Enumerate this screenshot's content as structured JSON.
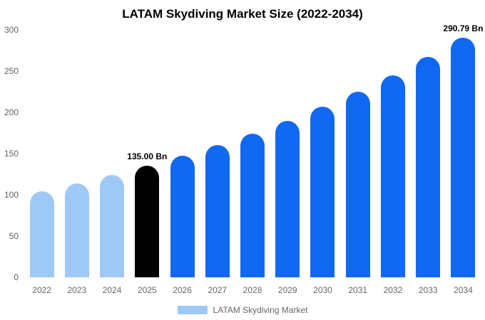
{
  "chart_data": {
    "type": "bar",
    "title": "LATAM Skydiving Market Size (2022-2034)",
    "categories": [
      "2022",
      "2023",
      "2024",
      "2025",
      "2026",
      "2027",
      "2028",
      "2029",
      "2030",
      "2031",
      "2032",
      "2033",
      "2034"
    ],
    "values": [
      104.54,
      113.84,
      123.97,
      135.0,
      147.01,
      160.1,
      174.35,
      189.87,
      206.77,
      225.17,
      245.21,
      267.03,
      290.79
    ],
    "bar_colors": [
      "#9ec9f7",
      "#9ec9f7",
      "#9ec9f7",
      "#000000",
      "#1168f2",
      "#1168f2",
      "#1168f2",
      "#1168f2",
      "#1168f2",
      "#1168f2",
      "#1168f2",
      "#1168f2",
      "#1168f2"
    ],
    "annotations": [
      {
        "category": "2025",
        "text": "135.00 Bn"
      },
      {
        "category": "2034",
        "text": "290.79 Bn"
      }
    ],
    "xlabel": "",
    "ylabel": "",
    "ylim": [
      0,
      300
    ],
    "yticks": [
      0,
      50,
      100,
      150,
      200,
      250,
      300
    ],
    "grid": false,
    "legend_position": "bottom",
    "legend": [
      {
        "label": "LATAM Skydiving Market",
        "color": "#9ec9f7"
      }
    ]
  }
}
